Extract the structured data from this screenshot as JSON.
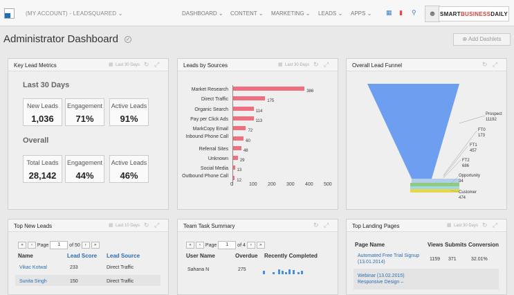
{
  "topbar": {
    "account": "(MY ACCOUNT) - LEADSQUARED ⌄",
    "nav": [
      "DASHBOARD ⌄",
      "CONTENT ⌄",
      "MARKETING ⌄",
      "LEADS ⌄",
      "APPS ⌄"
    ],
    "brand_a": "SMART",
    "brand_b": "BUSINESS",
    "brand_c": "DAILY"
  },
  "page": {
    "title": "Administrator Dashboard",
    "add_label": "⊕ Add Dashlets"
  },
  "key_metrics": {
    "title": "Key Lead Metrics",
    "date": "Last 30 Days",
    "section1": "Last 30 Days",
    "section2": "Overall",
    "row1": [
      {
        "label": "New Leads",
        "value": "1,036"
      },
      {
        "label": "Engagement",
        "value": "71%"
      },
      {
        "label": "Active Leads",
        "value": "91%"
      }
    ],
    "row2": [
      {
        "label": "Total Leads",
        "value": "28,142"
      },
      {
        "label": "Engagement",
        "value": "44%"
      },
      {
        "label": "Active Leads",
        "value": "46%"
      }
    ]
  },
  "sources": {
    "title": "Leads by Sources",
    "date": "Last 30 Days"
  },
  "chart_data": {
    "type": "bar",
    "orientation": "horizontal",
    "categories": [
      "Market Research",
      "Direct Traffic",
      "Organic Search",
      "Pay per Click Ads",
      "MarkCopy Email",
      "Inbound Phone Call",
      "Referral Sites",
      "Unknown",
      "Social Media",
      "Outbound Phone Call"
    ],
    "values": [
      386,
      175,
      114,
      113,
      72,
      60,
      48,
      29,
      13,
      12
    ],
    "xticks": [
      "0",
      "100",
      "200",
      "300",
      "400",
      "500"
    ],
    "xlim": [
      0,
      500
    ]
  },
  "funnel": {
    "title": "Overall Lead Funnel",
    "stages": [
      {
        "name": "Prospect",
        "value": "11192"
      },
      {
        "name": "FT0",
        "value": "173"
      },
      {
        "name": "FT1",
        "value": "457"
      },
      {
        "name": "FT2",
        "value": "686"
      },
      {
        "name": "Opportunity",
        "value": "34"
      },
      {
        "name": "Customer",
        "value": "474"
      }
    ]
  },
  "top_leads": {
    "title": "Top New Leads",
    "date": "Last 10 Days",
    "page_label": "Page",
    "page_value": "1",
    "of": "of 50",
    "headers": [
      "Name",
      "Lead Score",
      "Lead Source"
    ],
    "rows": [
      {
        "name": "Vikac Kotwal",
        "score": "233",
        "source": "Direct Traffic"
      },
      {
        "name": "Sunita Singh",
        "score": "150",
        "source": "Direct Traffic"
      }
    ]
  },
  "team": {
    "title": "Team Task Summary",
    "page_label": "Page",
    "page_value": "1",
    "of": "of 4",
    "headers": [
      "User Name",
      "Overdue",
      "Recently Completed"
    ],
    "rows": [
      {
        "name": "Sahana N",
        "overdue": "275"
      }
    ]
  },
  "landing": {
    "title": "Top Landing Pages",
    "date": "Last 30 Days",
    "headers": [
      "Page Name",
      "Views",
      "Submits",
      "Conversion"
    ],
    "rows": [
      {
        "name": "Automated Free Trial Signup (13.01.2014)",
        "views": "1159",
        "submits": "371",
        "conversion": "32.01%"
      },
      {
        "name": "Webinar (13.02.2015) Responsive Design –",
        "views": "",
        "submits": "",
        "conversion": ""
      }
    ]
  }
}
